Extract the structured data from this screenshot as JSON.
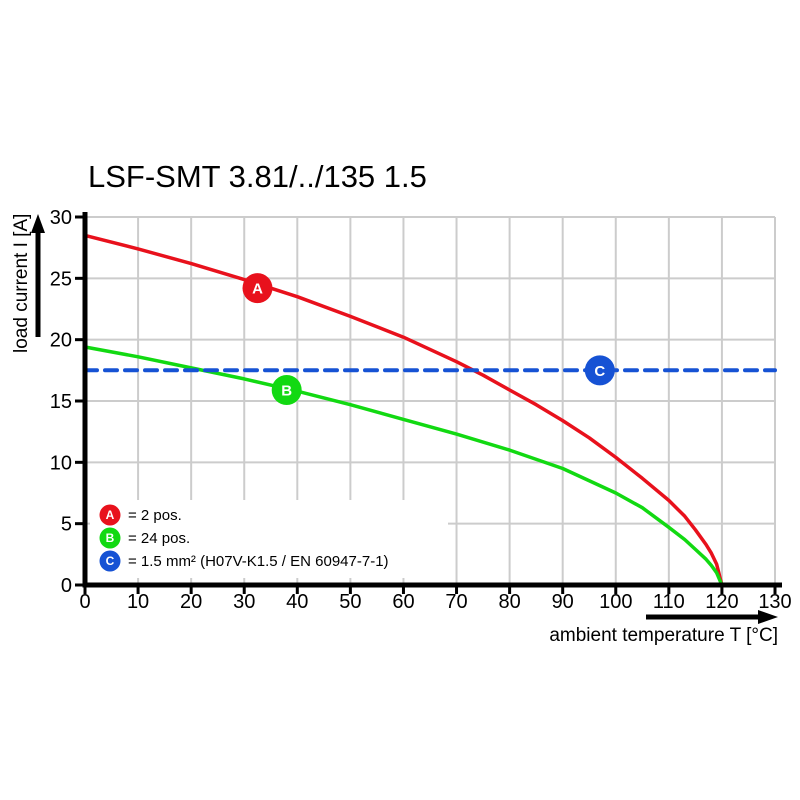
{
  "title": "LSF-SMT 3.81/../135 1.5",
  "chart_data": {
    "type": "line",
    "title": "LSF-SMT 3.81/../135 1.5",
    "xlabel": "ambient temperature T [°C]",
    "ylabel": "load current I [A]",
    "xlim": [
      0,
      130
    ],
    "ylim": [
      0,
      30
    ],
    "x_ticks": [
      0,
      10,
      20,
      30,
      40,
      50,
      60,
      70,
      80,
      90,
      100,
      110,
      120,
      130
    ],
    "y_ticks": [
      0,
      5,
      10,
      15,
      20,
      25,
      30
    ],
    "grid": true,
    "grid_color": "#cccccc",
    "axis_color": "#000000",
    "legend_position": "bottom-left-inside",
    "series": [
      {
        "name": "A",
        "legend_label": "= 2 pos.",
        "color": "#e8111c",
        "line_style": "solid",
        "marker": {
          "letter": "A",
          "x": 32.5,
          "y": 24.2
        },
        "points": [
          [
            0,
            28.5
          ],
          [
            10,
            27.4
          ],
          [
            20,
            26.2
          ],
          [
            30,
            24.9
          ],
          [
            40,
            23.5
          ],
          [
            50,
            21.9
          ],
          [
            60,
            20.2
          ],
          [
            70,
            18.2
          ],
          [
            75,
            17.1
          ],
          [
            80,
            15.9
          ],
          [
            85,
            14.7
          ],
          [
            90,
            13.4
          ],
          [
            95,
            12.0
          ],
          [
            100,
            10.4
          ],
          [
            105,
            8.7
          ],
          [
            110,
            6.9
          ],
          [
            113,
            5.6
          ],
          [
            115,
            4.5
          ],
          [
            117,
            3.3
          ],
          [
            118,
            2.6
          ],
          [
            119,
            1.7
          ],
          [
            120,
            0
          ]
        ]
      },
      {
        "name": "B",
        "legend_label": "= 24 pos.",
        "color": "#12d912",
        "line_style": "solid",
        "marker": {
          "letter": "B",
          "x": 38,
          "y": 15.9
        },
        "points": [
          [
            0,
            19.4
          ],
          [
            10,
            18.6
          ],
          [
            20,
            17.7
          ],
          [
            30,
            16.8
          ],
          [
            40,
            15.8
          ],
          [
            50,
            14.7
          ],
          [
            60,
            13.5
          ],
          [
            70,
            12.3
          ],
          [
            80,
            11.0
          ],
          [
            90,
            9.5
          ],
          [
            100,
            7.5
          ],
          [
            105,
            6.3
          ],
          [
            110,
            4.7
          ],
          [
            113,
            3.7
          ],
          [
            115,
            2.9
          ],
          [
            117,
            2.1
          ],
          [
            118,
            1.6
          ],
          [
            119,
            1.0
          ],
          [
            120,
            0
          ]
        ]
      },
      {
        "name": "C",
        "legend_label": "= 1.5 mm² (H07V-K1.5 / EN 60947-7-1)",
        "color": "#1652d4",
        "line_style": "dashed",
        "marker": {
          "letter": "C",
          "x": 97,
          "y": 17.5
        },
        "points": [
          [
            0,
            17.5
          ],
          [
            130,
            17.5
          ]
        ]
      }
    ]
  }
}
